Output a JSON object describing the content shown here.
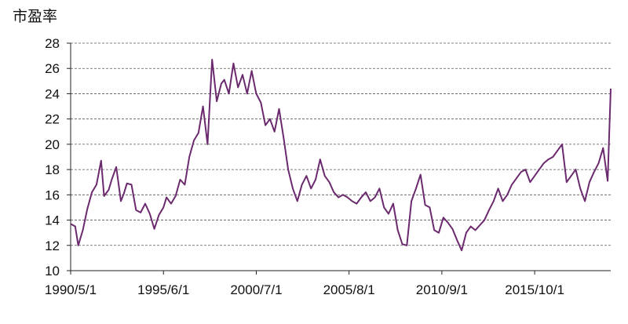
{
  "chart_data": {
    "type": "line",
    "title": "",
    "ylabel": "市盈率",
    "xlabel": "",
    "ylim": [
      10,
      28
    ],
    "yticks": [
      10,
      12,
      14,
      16,
      18,
      20,
      22,
      24,
      26,
      28
    ],
    "xlim": [
      "1990-05",
      "2019-12"
    ],
    "xticks": [
      {
        "label": "1990/5/1",
        "date": "1990-05"
      },
      {
        "label": "1995/6/1",
        "date": "1995-06"
      },
      {
        "label": "2000/7/1",
        "date": "2000-07"
      },
      {
        "label": "2005/8/1",
        "date": "2005-08"
      },
      {
        "label": "2010/9/1",
        "date": "2010-09"
      },
      {
        "label": "2015/10/1",
        "date": "2015-10"
      }
    ],
    "grid": "horizontal dashed",
    "line_color": "#6b2a6e",
    "series": [
      {
        "x": [
          "1990-05",
          "1990-08",
          "1990-10",
          "1991-01",
          "1991-04",
          "1991-07",
          "1991-10",
          "1992-01",
          "1992-03",
          "1992-06",
          "1992-08",
          "1992-11",
          "1993-02",
          "1993-04",
          "1993-06",
          "1993-09",
          "1993-12",
          "1994-03",
          "1994-06",
          "1994-09",
          "1994-12",
          "1995-03",
          "1995-06",
          "1995-08",
          "1995-11",
          "1996-02",
          "1996-05",
          "1996-08",
          "1996-11",
          "1997-02",
          "1997-05",
          "1997-08",
          "1997-11",
          "1998-02",
          "1998-05",
          "1998-08",
          "1998-10",
          "1999-01",
          "1999-04",
          "1999-07",
          "1999-10",
          "2000-01",
          "2000-04",
          "2000-07",
          "2000-10",
          "2001-01",
          "2001-04",
          "2001-07",
          "2001-10",
          "2002-01",
          "2002-04",
          "2002-07",
          "2002-10",
          "2003-01",
          "2003-04",
          "2003-07",
          "2003-10",
          "2004-01",
          "2004-04",
          "2004-07",
          "2004-10",
          "2005-01",
          "2005-04",
          "2005-07",
          "2005-10",
          "2006-01",
          "2006-04",
          "2006-07",
          "2006-10",
          "2007-01",
          "2007-04",
          "2007-07",
          "2007-10",
          "2008-01",
          "2008-04",
          "2008-07",
          "2008-10",
          "2009-01",
          "2009-04",
          "2009-07",
          "2009-10",
          "2010-01",
          "2010-04",
          "2010-07",
          "2010-10",
          "2011-01",
          "2011-04",
          "2011-07",
          "2011-10",
          "2012-01",
          "2012-04",
          "2012-07",
          "2012-10",
          "2013-01",
          "2013-04",
          "2013-07",
          "2013-10",
          "2014-01",
          "2014-04",
          "2014-07",
          "2014-10",
          "2015-01",
          "2015-04",
          "2015-07",
          "2015-10",
          "2016-01",
          "2016-04",
          "2016-07",
          "2016-10",
          "2017-01",
          "2017-04",
          "2017-07",
          "2017-10",
          "2018-01",
          "2018-04",
          "2018-07",
          "2018-10",
          "2019-01",
          "2019-04",
          "2019-07",
          "2019-10",
          "2019-12"
        ],
        "y": [
          13.7,
          13.5,
          12.0,
          13.2,
          14.9,
          16.2,
          16.8,
          18.7,
          15.9,
          16.4,
          17.2,
          18.2,
          15.5,
          16.1,
          16.9,
          16.8,
          14.8,
          14.6,
          15.3,
          14.5,
          13.3,
          14.4,
          15.0,
          15.8,
          15.3,
          15.9,
          17.2,
          16.8,
          19.0,
          20.3,
          20.9,
          23.0,
          20.0,
          26.7,
          23.4,
          24.8,
          25.1,
          24.0,
          26.4,
          24.5,
          25.5,
          24.0,
          25.8,
          24.0,
          23.3,
          21.5,
          22.0,
          21.0,
          22.8,
          20.5,
          18.0,
          16.5,
          15.5,
          16.8,
          17.5,
          16.5,
          17.2,
          18.8,
          17.5,
          17.0,
          16.2,
          15.8,
          16.0,
          15.8,
          15.5,
          15.3,
          15.8,
          16.2,
          15.5,
          15.8,
          16.5,
          15.0,
          14.5,
          15.3,
          13.2,
          12.1,
          12.0,
          15.5,
          16.5,
          17.6,
          15.2,
          15.0,
          13.2,
          13.0,
          14.2,
          13.8,
          13.3,
          12.4,
          11.6,
          13.0,
          13.5,
          13.2,
          13.6,
          14.0,
          14.8,
          15.5,
          16.5,
          15.5,
          16.0,
          16.8,
          17.3,
          17.8,
          18.0,
          17.0,
          17.5,
          18.0,
          18.5,
          18.8,
          19.0,
          19.5,
          20.0,
          17.0,
          17.5,
          18.0,
          16.5,
          15.5,
          17.0,
          17.8,
          18.5,
          19.7,
          17.1,
          24.4
        ]
      }
    ]
  }
}
